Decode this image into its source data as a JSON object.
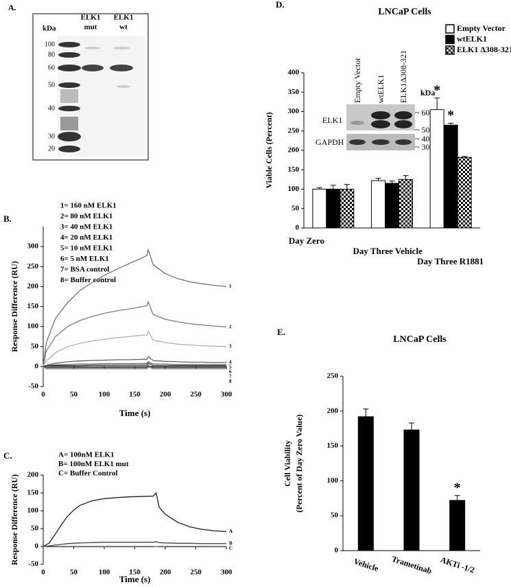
{
  "gel": {
    "panel_label": "A.",
    "unit": "kDa",
    "lanes": [
      [
        "ELK1",
        "mut"
      ],
      [
        "ELK1",
        "wt"
      ]
    ],
    "markers": [
      100,
      80,
      60,
      50,
      40,
      30,
      20
    ]
  },
  "d_inset": {
    "lanes": [
      "Empty Vector",
      "wtELK1",
      "ELK1Δ308-321"
    ],
    "rows": [
      "ELK1",
      "GAPDH"
    ],
    "unit": "kDa",
    "sizes": [
      "~ 60",
      "~ 50",
      "~ 40",
      "~ 30"
    ]
  },
  "chart_data": [
    {
      "type": "line",
      "panel_label": "B.",
      "notes": [
        "1= 160 nM ELK1",
        "2= 80 nM ELK1",
        "3= 40 nM ELK1",
        "4= 20 nM ELK1",
        "5= 10 nM ELK1",
        "6= 5 nM ELK1",
        "7= BSA control",
        "8= Buffer control"
      ],
      "xlabel": "Time (s)",
      "ylabel": "Response Difference (RU)",
      "xlim": [
        0,
        300
      ],
      "xticks": [
        0,
        50,
        100,
        150,
        200,
        250,
        300
      ],
      "ylim": [
        -50,
        350
      ],
      "yticks": [
        -50,
        0,
        50,
        100,
        150,
        200,
        250,
        300
      ],
      "x": [
        0,
        5,
        10,
        20,
        40,
        60,
        80,
        100,
        120,
        140,
        160,
        170,
        172,
        180,
        200,
        220,
        240,
        260,
        280,
        300
      ],
      "series": [
        {
          "name": "1",
          "color": "#707070",
          "values": [
            0,
            60,
            80,
            120,
            160,
            190,
            210,
            228,
            243,
            257,
            270,
            278,
            292,
            255,
            232,
            220,
            212,
            207,
            203,
            200
          ]
        },
        {
          "name": "2",
          "color": "#7c7c7c",
          "values": [
            0,
            40,
            50,
            75,
            100,
            115,
            125,
            133,
            139,
            144,
            149,
            152,
            162,
            130,
            118,
            112,
            107,
            104,
            101,
            99
          ]
        },
        {
          "name": "3",
          "color": "#b0b0b0",
          "values": [
            0,
            15,
            20,
            35,
            50,
            58,
            64,
            68,
            72,
            75,
            78,
            79,
            88,
            66,
            60,
            56,
            54,
            52,
            51,
            50
          ]
        },
        {
          "name": "4",
          "color": "#606060",
          "values": [
            0,
            3,
            5,
            8,
            12,
            14,
            15,
            16,
            17,
            17,
            18,
            18,
            25,
            15,
            13,
            12,
            11,
            11,
            10,
            10
          ]
        },
        {
          "name": "5",
          "color": "#505050",
          "values": [
            0,
            2,
            3,
            4,
            5,
            6,
            6,
            7,
            7,
            7,
            7,
            7,
            12,
            6,
            6,
            5,
            5,
            5,
            5,
            5
          ]
        },
        {
          "name": "6",
          "color": "#404040",
          "values": [
            0,
            1,
            1,
            2,
            2,
            2,
            3,
            3,
            3,
            3,
            3,
            3,
            8,
            2,
            2,
            2,
            2,
            2,
            2,
            2
          ]
        },
        {
          "name": "7",
          "color": "#303030",
          "values": [
            0,
            -3,
            -3,
            -3,
            -3,
            -3,
            -3,
            -3,
            -3,
            -3,
            -3,
            -3,
            2,
            -3,
            -3,
            -3,
            -3,
            -3,
            -3,
            -3
          ]
        },
        {
          "name": "8",
          "color": "#909090",
          "values": [
            0,
            -6,
            -6,
            -6,
            -6,
            -6,
            -6,
            -6,
            -6,
            -6,
            -6,
            -6,
            -1,
            -6,
            -6,
            -6,
            -6,
            -6,
            -6,
            -6
          ]
        }
      ]
    },
    {
      "type": "line",
      "panel_label": "C.",
      "notes": [
        "A= 100nM ELK1",
        "B= 100nM ELK1 mut",
        "C= Buffer Control"
      ],
      "xlabel": "Time (s)",
      "ylabel": "Response  Difference (RU)",
      "xlim": [
        0,
        300
      ],
      "xticks": [
        0,
        50,
        100,
        150,
        200,
        250,
        300
      ],
      "ylim": [
        -50,
        200
      ],
      "yticks": [
        -50,
        0,
        50,
        100,
        150,
        200
      ],
      "x": [
        0,
        10,
        20,
        30,
        40,
        50,
        60,
        80,
        100,
        120,
        140,
        160,
        180,
        185,
        190,
        200,
        220,
        240,
        260,
        280,
        300
      ],
      "series": [
        {
          "name": "A",
          "color": "#202020",
          "values": [
            0,
            10,
            35,
            62,
            85,
            102,
            115,
            128,
            134,
            137,
            139,
            140,
            141,
            150,
            110,
            90,
            68,
            55,
            48,
            44,
            42
          ]
        },
        {
          "name": "B",
          "color": "#454545",
          "values": [
            0,
            2,
            4,
            6,
            8,
            9,
            10,
            11,
            12,
            12,
            12,
            12,
            12,
            13,
            11,
            10,
            9,
            9,
            8,
            8,
            8
          ]
        },
        {
          "name": "C",
          "color": "#666666",
          "values": [
            0,
            -1,
            -1,
            -1,
            -1,
            -1,
            -1,
            -1,
            -1,
            -1,
            -1,
            -1,
            -1,
            0,
            -1,
            -1,
            -1,
            -1,
            -1,
            -1,
            -1
          ]
        }
      ]
    },
    {
      "type": "bar",
      "panel_label": "D.",
      "title": "LNCaP Cells",
      "ylabel": [
        "Viable  Cells (Percent)"
      ],
      "categories": [
        "Day Zero",
        "Day Three Vehicle",
        "Day Three R1881"
      ],
      "ylim": [
        0,
        400
      ],
      "yticks": [
        0,
        50,
        100,
        150,
        200,
        250,
        300,
        350,
        400
      ],
      "series": [
        {
          "name": "Empty Vector",
          "color": "#ffffff",
          "values": [
            100,
            122,
            305
          ],
          "errors": [
            4,
            6,
            30
          ],
          "annotations": [
            null,
            null,
            "*"
          ]
        },
        {
          "name": "wtELK1",
          "color": "#000000",
          "values": [
            100,
            115,
            265
          ],
          "errors": [
            10,
            6,
            5
          ],
          "annotations": [
            null,
            null,
            "*"
          ]
        },
        {
          "name": "ELK1  Δ308-321",
          "color": "#000000",
          "pattern": "checker",
          "values": [
            100,
            125,
            182
          ],
          "errors": [
            12,
            10,
            2
          ],
          "annotations": [
            null,
            null,
            null
          ]
        }
      ]
    },
    {
      "type": "bar",
      "panel_label": "E.",
      "title": "LNCaP Cells",
      "ylabel": [
        "Cell Viability",
        "(Percent of Day Zero Value)"
      ],
      "categories": [
        "Vehicle",
        "Trametinab",
        "AKTi -1/2"
      ],
      "ylim": [
        0,
        250
      ],
      "yticks": [
        0,
        50,
        100,
        150,
        200,
        250
      ],
      "series": [
        {
          "color": "#000000",
          "values": [
            192,
            173,
            72
          ],
          "errors": [
            11,
            10,
            7
          ],
          "annotations": [
            null,
            null,
            "*"
          ]
        }
      ]
    }
  ]
}
